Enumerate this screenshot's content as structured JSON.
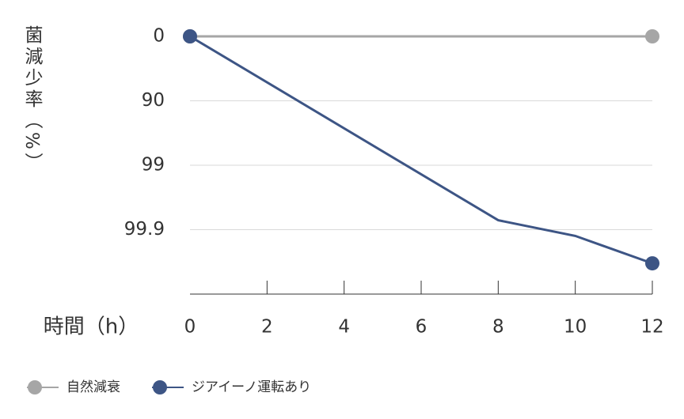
{
  "chart_data": {
    "type": "line",
    "y_label": "菌減少率（%）",
    "x_label": "時間（h）",
    "yscale": "log-reduction",
    "ylim": [
      0,
      99.99
    ],
    "yticks": [
      0,
      90,
      99,
      99.9
    ],
    "xlim": [
      0,
      12
    ],
    "xticks": [
      0,
      2,
      4,
      6,
      8,
      10,
      12
    ],
    "grid": true,
    "markers": "ends",
    "legend": "bottom-left",
    "series": [
      {
        "name": "自然減衰",
        "color": "#a6a6a6",
        "x": [
          0,
          12
        ],
        "values": [
          0,
          0
        ]
      },
      {
        "name": "ジアイーノ運転あり",
        "color": "#3d5585",
        "x": [
          0,
          8,
          10,
          12
        ],
        "values": [
          0,
          99.86,
          99.92,
          99.97
        ]
      }
    ]
  }
}
